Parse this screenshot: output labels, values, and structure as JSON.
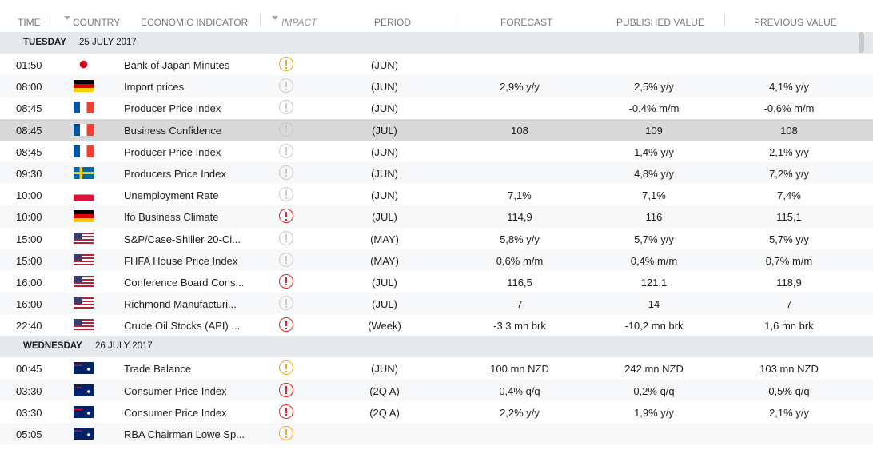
{
  "header": {
    "time": "TIME",
    "country": "COUNTRY",
    "indicator": "ECONOMIC INDICATOR",
    "impact": "IMPACT",
    "period": "PERIOD",
    "forecast": "FORECAST",
    "published": "PUBLISHED VALUE",
    "previous": "PREVIOUS VALUE"
  },
  "days": [
    {
      "weekday": "TUESDAY",
      "date": "25 JULY 2017",
      "rows": [
        {
          "time": "01:50",
          "indicator": "Bank of Japan Minutes",
          "period": "(JUN)"
        },
        {
          "time": "08:00",
          "indicator": "Import prices",
          "period": "(JUN)",
          "forecast": "2,9% y/y",
          "published": "2,5% y/y",
          "previous": "4,1% y/y"
        },
        {
          "time": "08:45",
          "indicator": "Producer Price Index",
          "period": "(JUN)",
          "published": "-0,4% m/m",
          "previous": "-0,6% m/m"
        },
        {
          "time": "08:45",
          "indicator": "Business Confidence",
          "period": "(JUL)",
          "forecast": "108",
          "published": "109",
          "previous": "108"
        },
        {
          "time": "08:45",
          "indicator": "Producer Price Index",
          "period": "(JUN)",
          "published": "1,4% y/y",
          "previous": "2,1% y/y"
        },
        {
          "time": "09:30",
          "indicator": "Producers Price Index",
          "period": "(JUN)",
          "published": "4,8% y/y",
          "previous": "7,2% y/y"
        },
        {
          "time": "10:00",
          "indicator": "Unemployment Rate",
          "period": "(JUN)",
          "forecast": "7,1%",
          "published": "7,1%",
          "previous": "7,4%"
        },
        {
          "time": "10:00",
          "indicator": "Ifo Business Climate",
          "period": "(JUL)",
          "forecast": "114,9",
          "published": "116",
          "previous": "115,1"
        },
        {
          "time": "15:00",
          "indicator": "S&P/Case-Shiller 20-Ci...",
          "period": "(MAY)",
          "forecast": "5,8% y/y",
          "published": "5,7% y/y",
          "previous": "5,7% y/y"
        },
        {
          "time": "15:00",
          "indicator": "FHFA House Price Index",
          "period": "(MAY)",
          "forecast": "0,6% m/m",
          "published": "0,4% m/m",
          "previous": "0,7% m/m"
        },
        {
          "time": "16:00",
          "indicator": "Conference Board Cons...",
          "period": "(JUL)",
          "forecast": "116,5",
          "published": "121,1",
          "previous": "118,9"
        },
        {
          "time": "16:00",
          "indicator": "Richmond Manufacturi...",
          "period": "(JUL)",
          "forecast": "7",
          "published": "14",
          "previous": "7"
        },
        {
          "time": "22:40",
          "indicator": "Crude Oil Stocks (API) ...",
          "period": "(Week)",
          "forecast": "-3,3 mn brk",
          "published": "-10,2 mn brk",
          "previous": "1,6 mn brk"
        }
      ]
    },
    {
      "weekday": "WEDNESDAY",
      "date": "26 JULY 2017",
      "rows": [
        {
          "time": "00:45",
          "indicator": "Trade Balance",
          "period": "(JUN)",
          "forecast": "100 mn NZD",
          "published": "242 mn NZD",
          "previous": "103 mn NZD"
        },
        {
          "time": "03:30",
          "indicator": "Consumer Price Index",
          "period": "(2Q A)",
          "forecast": "0,4% q/q",
          "published": "0,2% q/q",
          "previous": "0,5% q/q"
        },
        {
          "time": "03:30",
          "indicator": "Consumer Price Index",
          "period": "(2Q A)",
          "forecast": "2,2% y/y",
          "published": "1,9% y/y",
          "previous": "2,1% y/y"
        },
        {
          "time": "05:05",
          "indicator": "RBA Chairman Lowe Sp..."
        }
      ]
    }
  ]
}
